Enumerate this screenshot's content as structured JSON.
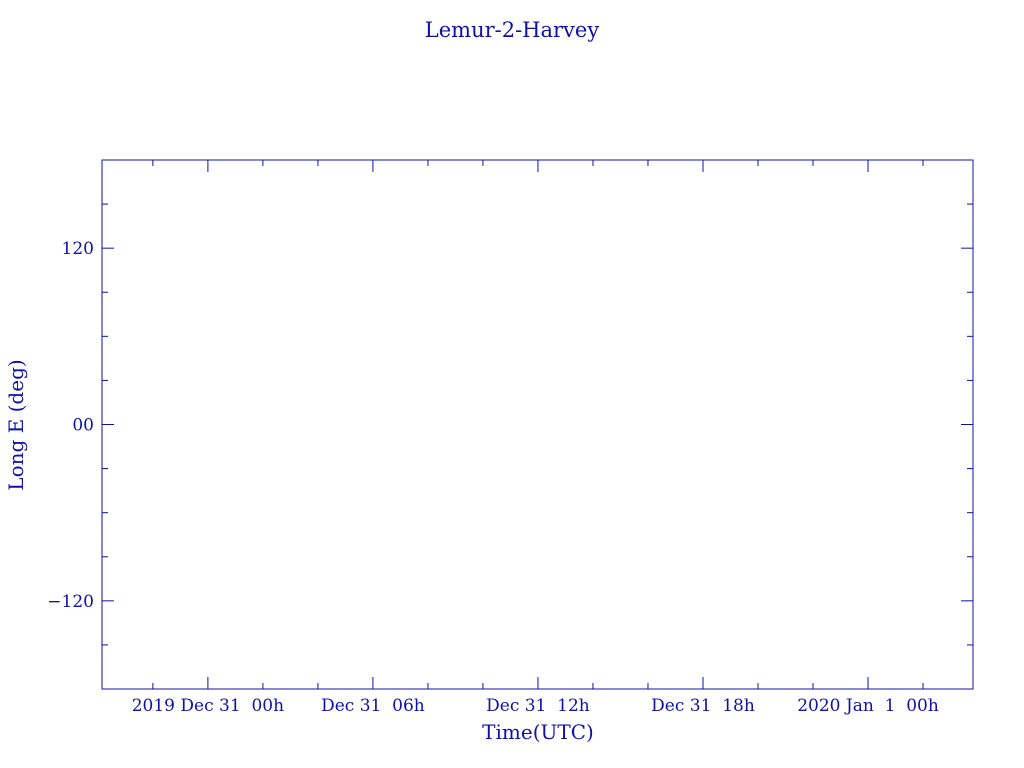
{
  "chart_data": {
    "type": "line",
    "title": "Lemur-2-Harvey",
    "xlabel": "Time(UTC)",
    "ylabel": "Long E (deg)",
    "xlim": [
      "2019-12-30T20:09",
      "2020-01-01T03:49"
    ],
    "ylim": [
      -180,
      180
    ],
    "x_major_ticks": [
      {
        "time": "2019-12-31T00:00",
        "label": "2019 Dec 31  00h"
      },
      {
        "time": "2019-12-31T06:00",
        "label": "Dec 31  06h"
      },
      {
        "time": "2019-12-31T12:00",
        "label": "Dec 31  12h"
      },
      {
        "time": "2019-12-31T18:00",
        "label": "Dec 31  18h"
      },
      {
        "time": "2020-01-01T00:00",
        "label": "2020 Jan  1  00h"
      }
    ],
    "x_minor_tick_hours": 2,
    "y_major_ticks": [
      {
        "value": 120,
        "label": "120"
      },
      {
        "value": 0,
        "label": "00"
      },
      {
        "value": -120,
        "label": "−120"
      }
    ],
    "y_minor_tick_step": 30,
    "series": [],
    "grid": false,
    "color": "#1010a8"
  }
}
